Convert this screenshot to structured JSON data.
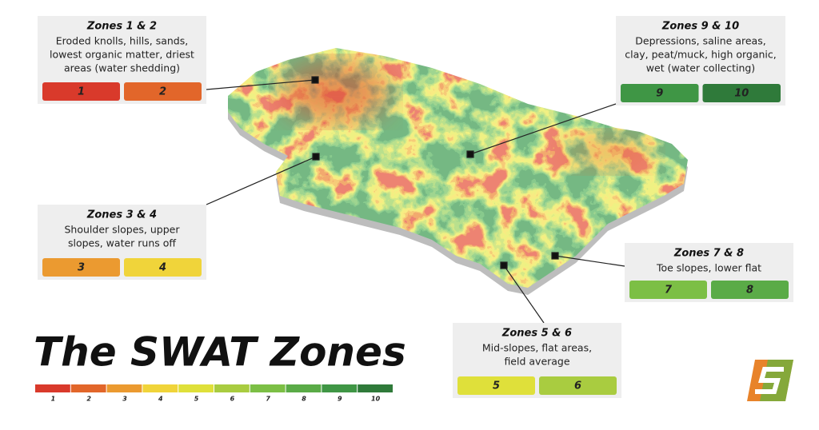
{
  "title": "The SWAT Zones",
  "zone_colors": [
    "#d93a2b",
    "#e2662a",
    "#eb9a30",
    "#f0d43a",
    "#dfe03a",
    "#a9cc40",
    "#7cbf45",
    "#5aab47",
    "#3f9645",
    "#2f7a3a"
  ],
  "legend": {
    "labels": [
      1,
      2,
      3,
      4,
      5,
      6,
      7,
      8,
      9,
      10
    ]
  },
  "callouts": [
    {
      "title": "Zones 1 & 2",
      "lines": [
        "Eroded knolls, hills, sands,",
        "lowest organic matter, driest",
        "areas (water shedding)"
      ],
      "zones": [
        1,
        2
      ]
    },
    {
      "title": "Zones 9 & 10",
      "lines": [
        "Depressions, saline areas,",
        "clay, peat/muck, high organic,",
        "wet (water collecting)"
      ],
      "zones": [
        9,
        10
      ]
    },
    {
      "title": "Zones 3 & 4",
      "lines": [
        "Shoulder slopes, upper",
        "slopes, water runs off"
      ],
      "zones": [
        3,
        4
      ]
    },
    {
      "title": "Zones 7 & 8",
      "lines": [
        "Toe slopes, lower flat"
      ],
      "zones": [
        7,
        8
      ]
    },
    {
      "title": "Zones 5 & 6",
      "lines": [
        "Mid-slopes, flat areas,",
        "field average"
      ],
      "zones": [
        5,
        6
      ]
    }
  ]
}
